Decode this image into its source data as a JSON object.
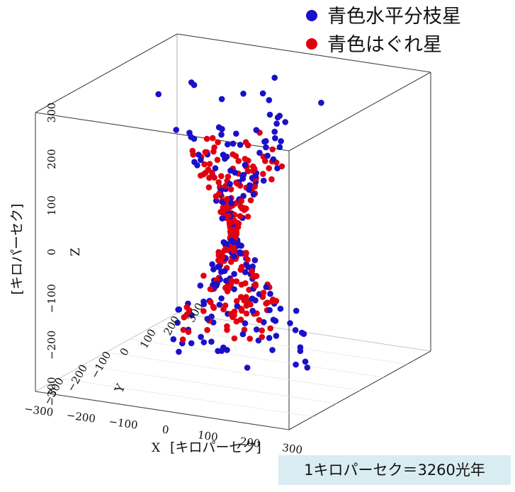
{
  "chart_data": {
    "type": "scatter",
    "projection": "3d",
    "xlabel": "X",
    "ylabel": "Y",
    "zlabel": "Z",
    "x_unit": "[キロパーセク]",
    "z_unit": "[キロパーセク]",
    "xlim": [
      -300,
      300
    ],
    "ylim": [
      -300,
      300
    ],
    "zlim": [
      -300,
      300
    ],
    "x_ticks": [
      "−300",
      "−200",
      "−100",
      "0",
      "100",
      "200",
      "300"
    ],
    "y_ticks": [
      "−300",
      "−200",
      "−100",
      "0",
      "100",
      "200",
      "300"
    ],
    "z_ticks": [
      "−300",
      "−200",
      "−100",
      "0",
      "100",
      "200",
      "300"
    ],
    "legend_position": "top-right",
    "grid": false,
    "series": [
      {
        "name": "青色水平分枝星",
        "color": "#1a10c8"
      },
      {
        "name": "青色はぐれ星",
        "color": "#e00010"
      }
    ],
    "note": "1キロパーセク＝3260光年"
  }
}
